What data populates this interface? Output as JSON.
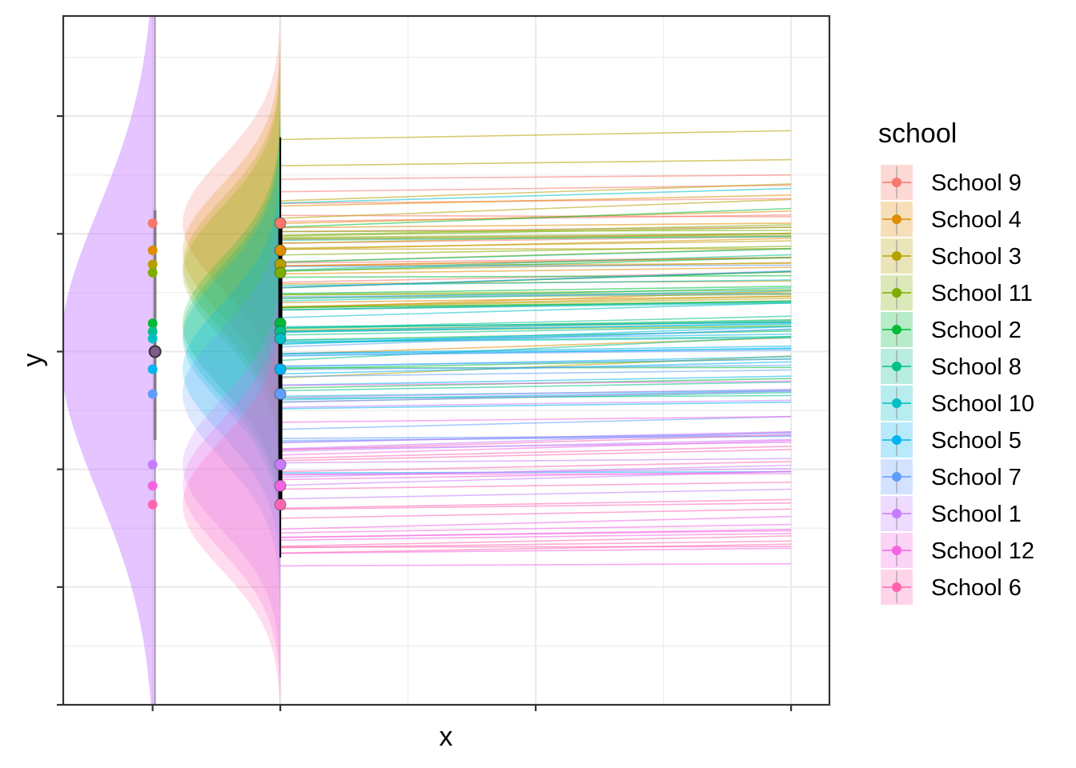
{
  "chart_data": {
    "type": "line",
    "xlabel": "x",
    "ylabel": "y",
    "x_tick_labels": [
      "",
      "",
      "",
      ""
    ],
    "y_tick_labels": [
      "",
      "",
      "",
      "",
      "",
      ""
    ],
    "grid": true,
    "legend": {
      "title": "school",
      "placement": "right",
      "entries": [
        {
          "name": "School 9",
          "color": "#F8766D"
        },
        {
          "name": "School 4",
          "color": "#DE8C00"
        },
        {
          "name": "School 3",
          "color": "#B79F00"
        },
        {
          "name": "School 11",
          "color": "#7CAE00"
        },
        {
          "name": "School 2",
          "color": "#00BA38"
        },
        {
          "name": "School 8",
          "color": "#00C08B"
        },
        {
          "name": "School 10",
          "color": "#00BFC4"
        },
        {
          "name": "School 5",
          "color": "#00B4F0"
        },
        {
          "name": "School 7",
          "color": "#619CFF"
        },
        {
          "name": "School 1",
          "color": "#C77CFF"
        },
        {
          "name": "School 12",
          "color": "#F564E3"
        },
        {
          "name": "School 6",
          "color": "#FF64B0"
        }
      ]
    },
    "overall": {
      "mean": 0.0,
      "sd": 1.2,
      "interval": [
        -0.75,
        0.75
      ]
    },
    "schools": [
      {
        "name": "School 9",
        "mean": 1.09,
        "sd": 0.55,
        "slope": 0.035
      },
      {
        "name": "School 4",
        "mean": 0.86,
        "sd": 0.55,
        "slope": 0.035
      },
      {
        "name": "School 3",
        "mean": 0.74,
        "sd": 0.55,
        "slope": 0.035
      },
      {
        "name": "School 11",
        "mean": 0.67,
        "sd": 0.55,
        "slope": 0.035
      },
      {
        "name": "School 2",
        "mean": 0.24,
        "sd": 0.55,
        "slope": 0.035
      },
      {
        "name": "School 8",
        "mean": 0.17,
        "sd": 0.55,
        "slope": 0.035
      },
      {
        "name": "School 10",
        "mean": 0.11,
        "sd": 0.55,
        "slope": 0.035
      },
      {
        "name": "School 5",
        "mean": -0.15,
        "sd": 0.55,
        "slope": 0.035
      },
      {
        "name": "School 7",
        "mean": -0.36,
        "sd": 0.55,
        "slope": 0.035
      },
      {
        "name": "School 1",
        "mean": -0.96,
        "sd": 0.55,
        "slope": 0.035
      },
      {
        "name": "School 12",
        "mean": -1.14,
        "sd": 0.55,
        "slope": 0.035
      },
      {
        "name": "School 6",
        "mean": -1.3,
        "sd": 0.55,
        "slope": 0.035
      }
    ],
    "lines_per_school": 12,
    "x_range_lines": [
      0,
      2
    ],
    "xlim": [
      -0.85,
      2.15
    ],
    "ylim": [
      -3.0,
      2.85
    ]
  }
}
